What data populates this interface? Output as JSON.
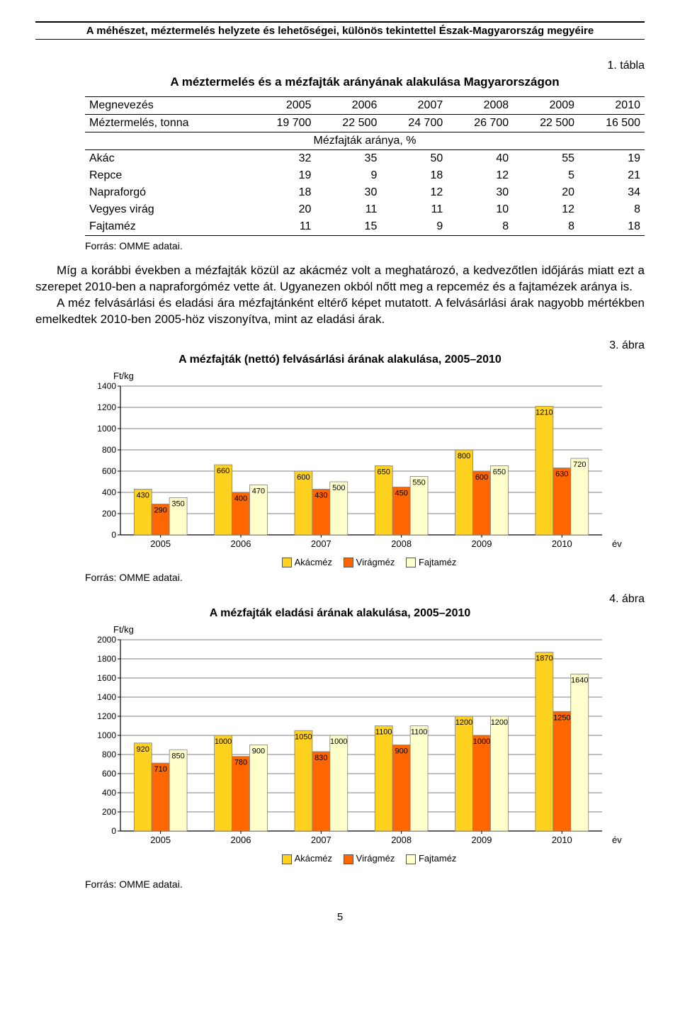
{
  "header": {
    "running_title": "A méhészet, méztermelés helyzete és lehetőségei, különös tekintettel Észak-Magyarország megyéire"
  },
  "table": {
    "caption_no": "1. tábla",
    "title": "A méztermelés és a mézfajták arányának alakulása Magyarországon",
    "col0": "Megnevezés",
    "years": [
      "2005",
      "2006",
      "2007",
      "2008",
      "2009",
      "2010"
    ],
    "row_prod_label": "Méztermelés, tonna",
    "row_prod": [
      "19 700",
      "22 500",
      "24 700",
      "26 700",
      "22 500",
      "16 500"
    ],
    "section_label": "Mézfajták aránya, %",
    "rows": [
      {
        "label": "Akác",
        "v": [
          "32",
          "35",
          "50",
          "40",
          "55",
          "19"
        ]
      },
      {
        "label": "Repce",
        "v": [
          "19",
          "9",
          "18",
          "12",
          "5",
          "21"
        ]
      },
      {
        "label": "Napraforgó",
        "v": [
          "18",
          "30",
          "12",
          "30",
          "20",
          "34"
        ]
      },
      {
        "label": "Vegyes virág",
        "v": [
          "20",
          "11",
          "11",
          "10",
          "12",
          "8"
        ]
      },
      {
        "label": "Fajtaméz",
        "v": [
          "11",
          "15",
          "9",
          "8",
          "8",
          "18"
        ]
      }
    ],
    "source": "Forrás: OMME adatai."
  },
  "paragraphs": {
    "p1": "Míg a korábbi években a mézfajták közül az akácméz volt a meghatározó, a kedvezőtlen időjárás miatt ezt a szerepet 2010-ben a napraforgóméz vette át. Ugyanezen okból nőtt meg a repceméz és a fajtamézek aránya is.",
    "p2": "A méz felvásárlási és eladási ára mézfajtánként eltérő képet mutatott. A felvásárlási árak nagyobb mértékben emelkedtek 2010-ben 2005-höz viszonyítva, mint az eladási árak."
  },
  "chart1": {
    "caption_no": "3. ábra",
    "title": "A mézfajták (nettó) felvásárlási árának alakulása, 2005–2010",
    "ylabel": "Ft/kg",
    "xlabel": "év",
    "ymax": 1400,
    "yticks": [
      0,
      200,
      400,
      600,
      800,
      1000,
      1200,
      1400
    ],
    "categories": [
      "2005",
      "2006",
      "2007",
      "2008",
      "2009",
      "2010"
    ],
    "series_names": [
      "Akácméz",
      "Virágméz",
      "Fajtaméz"
    ],
    "series_colors": [
      "#ffd21f",
      "#ff6600",
      "#ffffcc"
    ],
    "border_color": "#7f7f7f",
    "grid_color": "#000000",
    "bg": "#ffffff",
    "data": [
      [
        430,
        290,
        350
      ],
      [
        660,
        400,
        470
      ],
      [
        600,
        430,
        500
      ],
      [
        650,
        450,
        550
      ],
      [
        800,
        600,
        650
      ],
      [
        1210,
        630,
        720
      ]
    ],
    "source": "Forrás: OMME adatai."
  },
  "chart2": {
    "caption_no": "4. ábra",
    "title": "A mézfajták eladási árának alakulása, 2005–2010",
    "ylabel": "Ft/kg",
    "xlabel": "év",
    "ymax": 2000,
    "yticks": [
      0,
      200,
      400,
      600,
      800,
      1000,
      1200,
      1400,
      1600,
      1800,
      2000
    ],
    "categories": [
      "2005",
      "2006",
      "2007",
      "2008",
      "2009",
      "2010"
    ],
    "series_names": [
      "Akácméz",
      "Virágméz",
      "Fajtaméz"
    ],
    "series_colors": [
      "#ffd21f",
      "#ff6600",
      "#ffffcc"
    ],
    "border_color": "#7f7f7f",
    "grid_color": "#000000",
    "bg": "#ffffff",
    "data": [
      [
        920,
        710,
        850
      ],
      [
        1000,
        780,
        900
      ],
      [
        1050,
        830,
        1000
      ],
      [
        1100,
        900,
        1100
      ],
      [
        1200,
        1000,
        1200
      ],
      [
        1870,
        1250,
        1640
      ]
    ],
    "source": "Forrás: OMME adatai."
  },
  "legend": {
    "a": "Akácméz",
    "b": "Virágméz",
    "c": "Fajtaméz"
  },
  "page_number": "5"
}
